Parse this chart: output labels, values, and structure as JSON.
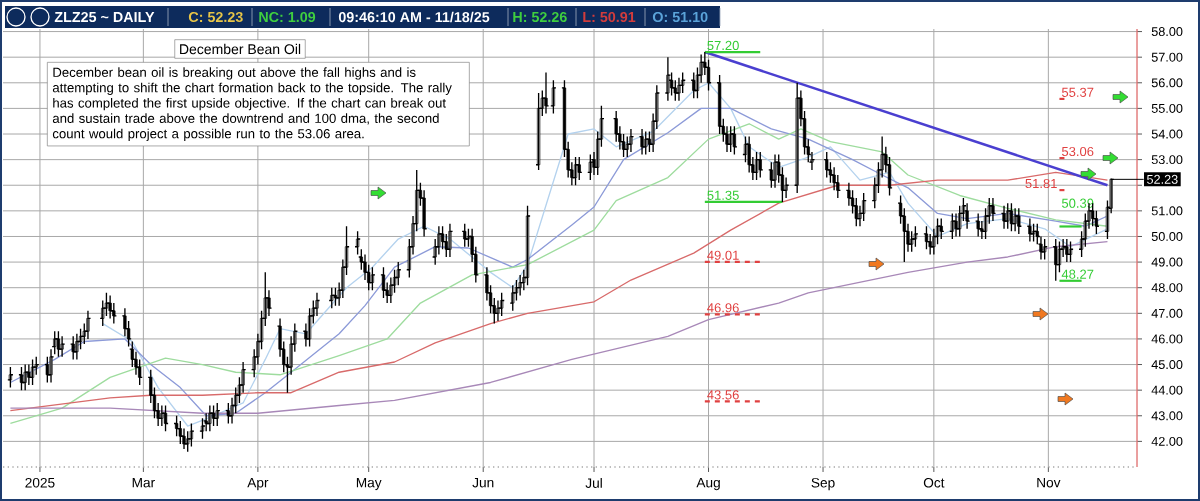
{
  "chart_data": {
    "type": "candlestick",
    "title": "ZLZ25 ~ DAILY",
    "subtitle": "December Bean Oil",
    "x": [
      "2025-01-24",
      "2025-01-27",
      "2025-01-28",
      "2025-01-29",
      "2025-01-30",
      "2025-01-31",
      "2025-02-03",
      "2025-02-04",
      "2025-02-05",
      "2025-02-06",
      "2025-02-07",
      "2025-02-10",
      "2025-02-11",
      "2025-02-12",
      "2025-02-13",
      "2025-02-14",
      "2025-02-18",
      "2025-02-19",
      "2025-02-20",
      "2025-02-21",
      "2025-02-24",
      "2025-02-25",
      "2025-02-26",
      "2025-02-27",
      "2025-02-28",
      "2025-03-03",
      "2025-03-04",
      "2025-03-05",
      "2025-03-06",
      "2025-03-07",
      "2025-03-10",
      "2025-03-11",
      "2025-03-12",
      "2025-03-13",
      "2025-03-14",
      "2025-03-17",
      "2025-03-18",
      "2025-03-19",
      "2025-03-20",
      "2025-03-21",
      "2025-03-24",
      "2025-03-25",
      "2025-03-26",
      "2025-03-27",
      "2025-03-28",
      "2025-03-31",
      "2025-04-01",
      "2025-04-02",
      "2025-04-03",
      "2025-04-04",
      "2025-04-07",
      "2025-04-08",
      "2025-04-09",
      "2025-04-10",
      "2025-04-11",
      "2025-04-14",
      "2025-04-15",
      "2025-04-16",
      "2025-04-17",
      "2025-04-21",
      "2025-04-22",
      "2025-04-23",
      "2025-04-24",
      "2025-04-25",
      "2025-04-28",
      "2025-04-29",
      "2025-04-30",
      "2025-05-01",
      "2025-05-02",
      "2025-05-05",
      "2025-05-06",
      "2025-05-07",
      "2025-05-08",
      "2025-05-09",
      "2025-05-12",
      "2025-05-13",
      "2025-05-14",
      "2025-05-15",
      "2025-05-16",
      "2025-05-19",
      "2025-05-20",
      "2025-05-21",
      "2025-05-22",
      "2025-05-23",
      "2025-05-27",
      "2025-05-28",
      "2025-05-29",
      "2025-05-30",
      "2025-06-02",
      "2025-06-03",
      "2025-06-04",
      "2025-06-05",
      "2025-06-06",
      "2025-06-09",
      "2025-06-10",
      "2025-06-11",
      "2025-06-12",
      "2025-06-13",
      "2025-06-16",
      "2025-06-17",
      "2025-06-18",
      "2025-06-20",
      "2025-06-23",
      "2025-06-24",
      "2025-06-25",
      "2025-06-26",
      "2025-06-27",
      "2025-06-30",
      "2025-07-01",
      "2025-07-02",
      "2025-07-03",
      "2025-07-07",
      "2025-07-08",
      "2025-07-09",
      "2025-07-10",
      "2025-07-11",
      "2025-07-14",
      "2025-07-15",
      "2025-07-16",
      "2025-07-17",
      "2025-07-18",
      "2025-07-21",
      "2025-07-22",
      "2025-07-23",
      "2025-07-24",
      "2025-07-25",
      "2025-07-28",
      "2025-07-29",
      "2025-07-30",
      "2025-07-31",
      "2025-08-01",
      "2025-08-04",
      "2025-08-05",
      "2025-08-06",
      "2025-08-07",
      "2025-08-08",
      "2025-08-11",
      "2025-08-12",
      "2025-08-13",
      "2025-08-14",
      "2025-08-15",
      "2025-08-18",
      "2025-08-19",
      "2025-08-20",
      "2025-08-21",
      "2025-08-22",
      "2025-08-25",
      "2025-08-26",
      "2025-08-27",
      "2025-08-28",
      "2025-08-29",
      "2025-09-02",
      "2025-09-03",
      "2025-09-04",
      "2025-09-05",
      "2025-09-08",
      "2025-09-09",
      "2025-09-10",
      "2025-09-11",
      "2025-09-12",
      "2025-09-15",
      "2025-09-16",
      "2025-09-17",
      "2025-09-18",
      "2025-09-19",
      "2025-09-22",
      "2025-09-23",
      "2025-09-24",
      "2025-09-25",
      "2025-09-26",
      "2025-09-29",
      "2025-09-30",
      "2025-10-01",
      "2025-10-02",
      "2025-10-03",
      "2025-10-06",
      "2025-10-07",
      "2025-10-08",
      "2025-10-09",
      "2025-10-10",
      "2025-10-13",
      "2025-10-14",
      "2025-10-15",
      "2025-10-16",
      "2025-10-17",
      "2025-10-20",
      "2025-10-21",
      "2025-10-22",
      "2025-10-23",
      "2025-10-24",
      "2025-10-27",
      "2025-10-28",
      "2025-10-29",
      "2025-10-30",
      "2025-10-31",
      "2025-11-03",
      "2025-11-04",
      "2025-11-05",
      "2025-11-06",
      "2025-11-07",
      "2025-11-10",
      "2025-11-11",
      "2025-11-12",
      "2025-11-13",
      "2025-11-14",
      "2025-11-17",
      "2025-11-18"
    ],
    "ohlc": [
      [
        44.4,
        44.9,
        44.1,
        44.6
      ],
      [
        44.6,
        44.9,
        44.0,
        44.3
      ],
      [
        44.3,
        45.0,
        44.0,
        44.7
      ],
      [
        44.7,
        45.0,
        44.2,
        44.5
      ],
      [
        44.5,
        45.2,
        44.2,
        44.9
      ],
      [
        44.9,
        45.3,
        44.6,
        45.0
      ],
      [
        45.0,
        45.3,
        44.3,
        44.6
      ],
      [
        44.6,
        45.6,
        44.3,
        45.3
      ],
      [
        45.7,
        46.3,
        45.4,
        46.0
      ],
      [
        46.0,
        46.3,
        45.3,
        45.6
      ],
      [
        45.6,
        46.1,
        45.3,
        45.8
      ],
      [
        45.8,
        46.1,
        45.2,
        45.5
      ],
      [
        45.5,
        46.2,
        45.2,
        45.9
      ],
      [
        45.9,
        46.4,
        45.6,
        46.1
      ],
      [
        46.1,
        46.6,
        45.8,
        46.3
      ],
      [
        46.3,
        47.1,
        46.0,
        46.8
      ],
      [
        46.8,
        47.5,
        46.5,
        47.2
      ],
      [
        47.2,
        47.8,
        46.9,
        47.4
      ],
      [
        47.4,
        47.7,
        46.8,
        47.1
      ],
      [
        47.1,
        47.4,
        46.6,
        46.9
      ],
      [
        46.9,
        47.2,
        46.1,
        46.4
      ],
      [
        46.4,
        46.7,
        45.7,
        46.0
      ],
      [
        45.6,
        45.9,
        44.9,
        45.2
      ],
      [
        45.2,
        45.5,
        44.6,
        44.9
      ],
      [
        44.9,
        45.2,
        44.2,
        44.5
      ],
      [
        44.5,
        44.8,
        43.5,
        43.8
      ],
      [
        43.8,
        44.1,
        42.9,
        43.2
      ],
      [
        43.2,
        43.5,
        42.6,
        42.9
      ],
      [
        42.9,
        43.4,
        42.6,
        43.1
      ],
      [
        43.1,
        43.4,
        42.4,
        42.7
      ],
      [
        42.7,
        43.0,
        42.2,
        42.5
      ],
      [
        42.5,
        42.8,
        41.9,
        42.2
      ],
      [
        42.2,
        42.5,
        41.7,
        41.9
      ],
      [
        41.9,
        42.4,
        41.6,
        42.1
      ],
      [
        42.1,
        42.7,
        41.8,
        42.4
      ],
      [
        42.4,
        42.9,
        42.1,
        42.6
      ],
      [
        42.8,
        43.1,
        42.4,
        42.7
      ],
      [
        42.7,
        43.4,
        42.4,
        43.1
      ],
      [
        43.1,
        43.4,
        42.6,
        42.9
      ],
      [
        42.9,
        43.5,
        42.6,
        43.2
      ],
      [
        43.2,
        43.5,
        42.7,
        43.0
      ],
      [
        43.0,
        43.7,
        42.7,
        43.4
      ],
      [
        43.4,
        44.1,
        43.1,
        43.8
      ],
      [
        43.8,
        44.5,
        43.5,
        44.2
      ],
      [
        44.2,
        45.1,
        43.9,
        44.8
      ],
      [
        44.8,
        45.6,
        44.5,
        45.3
      ],
      [
        45.3,
        46.2,
        45.0,
        45.9
      ],
      [
        45.9,
        47.1,
        45.6,
        46.8
      ],
      [
        46.8,
        48.6,
        46.5,
        47.6
      ],
      [
        47.6,
        47.9,
        46.9,
        47.2
      ],
      [
        46.5,
        46.8,
        45.3,
        45.6
      ],
      [
        45.6,
        45.9,
        44.7,
        45.0
      ],
      [
        45.0,
        45.3,
        43.9,
        44.9
      ],
      [
        44.9,
        46.1,
        44.6,
        45.8
      ],
      [
        45.8,
        46.6,
        45.5,
        46.3
      ],
      [
        46.3,
        46.6,
        45.7,
        46.0
      ],
      [
        46.0,
        47.2,
        45.7,
        46.9
      ],
      [
        46.9,
        47.5,
        46.6,
        47.2
      ],
      [
        47.2,
        47.8,
        46.9,
        47.5
      ],
      [
        47.5,
        48.0,
        47.2,
        47.7
      ],
      [
        47.7,
        48.0,
        47.3,
        47.6
      ],
      [
        47.6,
        48.2,
        47.3,
        47.9
      ],
      [
        47.9,
        49.1,
        47.6,
        48.8
      ],
      [
        48.8,
        50.4,
        48.5,
        49.6
      ],
      [
        49.6,
        50.2,
        49.3,
        49.9
      ],
      [
        49.2,
        49.5,
        48.7,
        49.0
      ],
      [
        49.0,
        49.3,
        48.3,
        48.6
      ],
      [
        48.6,
        48.9,
        47.9,
        48.2
      ],
      [
        48.2,
        48.8,
        47.9,
        48.5
      ],
      [
        48.5,
        48.8,
        47.6,
        47.9
      ],
      [
        47.9,
        48.2,
        47.4,
        47.7
      ],
      [
        47.7,
        48.4,
        47.4,
        48.1
      ],
      [
        48.1,
        48.7,
        47.8,
        48.4
      ],
      [
        48.4,
        49.0,
        48.1,
        48.7
      ],
      [
        48.7,
        49.9,
        48.4,
        49.6
      ],
      [
        49.6,
        50.8,
        49.3,
        50.5
      ],
      [
        50.5,
        52.6,
        50.2,
        51.8
      ],
      [
        51.8,
        52.1,
        51.2,
        51.5
      ],
      [
        51.5,
        51.8,
        50.0,
        50.3
      ],
      [
        49.2,
        49.9,
        48.9,
        49.6
      ],
      [
        49.6,
        50.4,
        49.3,
        50.1
      ],
      [
        50.1,
        50.4,
        49.5,
        49.8
      ],
      [
        49.8,
        50.1,
        49.2,
        49.5
      ],
      [
        49.5,
        50.5,
        49.2,
        50.2
      ],
      [
        50.2,
        50.5,
        49.6,
        49.9
      ],
      [
        49.9,
        50.3,
        49.6,
        50.0
      ],
      [
        50.0,
        50.3,
        49.0,
        49.3
      ],
      [
        49.3,
        49.6,
        48.2,
        48.5
      ],
      [
        48.5,
        48.8,
        47.5,
        47.8
      ],
      [
        47.8,
        48.1,
        47.0,
        47.3
      ],
      [
        47.3,
        47.6,
        46.6,
        47.0
      ],
      [
        47.0,
        47.5,
        46.7,
        47.2
      ],
      [
        47.2,
        47.8,
        46.9,
        47.5
      ],
      [
        47.4,
        48.1,
        47.1,
        47.8
      ],
      [
        47.8,
        48.3,
        47.5,
        48.0
      ],
      [
        48.0,
        48.5,
        47.7,
        48.2
      ],
      [
        48.2,
        48.7,
        47.9,
        48.4
      ],
      [
        48.4,
        51.2,
        48.1,
        50.8
      ],
      [
        52.8,
        55.6,
        52.6,
        55.0
      ],
      [
        55.0,
        55.7,
        54.7,
        55.4
      ],
      [
        55.4,
        56.4,
        54.8,
        55.1
      ],
      [
        55.1,
        56.1,
        54.8,
        55.8
      ],
      [
        55.8,
        56.1,
        53.1,
        53.4
      ],
      [
        53.4,
        53.7,
        52.3,
        52.6
      ],
      [
        52.6,
        52.9,
        52.0,
        52.3
      ],
      [
        52.3,
        53.1,
        52.0,
        52.8
      ],
      [
        52.8,
        53.1,
        52.2,
        52.5
      ],
      [
        52.5,
        53.2,
        52.2,
        52.9
      ],
      [
        53.0,
        53.3,
        52.4,
        52.7
      ],
      [
        52.7,
        54.1,
        52.4,
        53.8
      ],
      [
        53.8,
        55.1,
        53.5,
        54.6
      ],
      [
        54.6,
        54.9,
        53.7,
        54.0
      ],
      [
        54.0,
        54.3,
        53.4,
        53.7
      ],
      [
        53.7,
        54.0,
        53.1,
        53.4
      ],
      [
        53.4,
        53.9,
        53.1,
        53.6
      ],
      [
        53.6,
        54.2,
        53.3,
        53.9
      ],
      [
        53.9,
        54.2,
        53.2,
        53.5
      ],
      [
        53.5,
        54.1,
        53.2,
        53.8
      ],
      [
        53.8,
        54.1,
        53.3,
        53.6
      ],
      [
        53.6,
        54.8,
        53.3,
        54.5
      ],
      [
        54.5,
        55.9,
        54.2,
        55.6
      ],
      [
        55.6,
        57.0,
        55.3,
        56.3
      ],
      [
        56.1,
        56.4,
        55.5,
        55.8
      ],
      [
        55.8,
        56.1,
        55.3,
        55.6
      ],
      [
        55.6,
        56.2,
        55.3,
        55.9
      ],
      [
        55.9,
        56.4,
        55.6,
        56.1
      ],
      [
        56.1,
        56.4,
        55.4,
        55.7
      ],
      [
        55.7,
        56.6,
        55.4,
        56.3
      ],
      [
        56.3,
        57.1,
        56.0,
        56.8
      ],
      [
        56.8,
        57.2,
        56.3,
        56.6
      ],
      [
        56.6,
        56.9,
        55.7,
        56.0
      ],
      [
        56.0,
        56.3,
        54.0,
        54.3
      ],
      [
        54.3,
        54.6,
        53.7,
        54.0
      ],
      [
        54.0,
        54.3,
        53.3,
        53.6
      ],
      [
        53.6,
        54.3,
        53.3,
        54.0
      ],
      [
        54.0,
        54.3,
        53.2,
        53.5
      ],
      [
        53.2,
        53.9,
        52.9,
        53.6
      ],
      [
        53.6,
        53.9,
        52.5,
        52.8
      ],
      [
        52.8,
        53.1,
        52.2,
        52.5
      ],
      [
        52.5,
        53.3,
        52.2,
        53.0
      ],
      [
        53.0,
        53.3,
        52.3,
        52.6
      ],
      [
        52.6,
        52.9,
        51.9,
        52.2
      ],
      [
        52.2,
        53.2,
        51.9,
        52.9
      ],
      [
        52.9,
        53.2,
        52.1,
        52.4
      ],
      [
        52.4,
        52.7,
        51.35,
        51.8
      ],
      [
        51.8,
        52.3,
        51.5,
        52.0
      ],
      [
        52.0,
        56.0,
        51.7,
        55.4
      ],
      [
        55.4,
        55.7,
        54.3,
        54.6
      ],
      [
        54.6,
        54.9,
        53.2,
        53.5
      ],
      [
        53.5,
        53.8,
        52.9,
        53.2
      ],
      [
        52.9,
        53.3,
        52.6,
        53.0
      ],
      [
        53.0,
        53.3,
        52.3,
        52.6
      ],
      [
        52.6,
        52.9,
        52.1,
        52.4
      ],
      [
        52.4,
        52.7,
        51.8,
        52.1
      ],
      [
        52.1,
        52.4,
        51.5,
        51.8
      ],
      [
        51.8,
        52.1,
        51.2,
        51.5
      ],
      [
        51.5,
        51.8,
        50.9,
        51.2
      ],
      [
        51.2,
        51.5,
        50.4,
        50.7
      ],
      [
        50.7,
        51.2,
        50.4,
        50.9
      ],
      [
        50.9,
        51.7,
        50.6,
        51.4
      ],
      [
        51.4,
        52.3,
        51.1,
        52.0
      ],
      [
        52.0,
        52.9,
        51.7,
        52.6
      ],
      [
        52.6,
        53.9,
        52.3,
        53.2
      ],
      [
        53.2,
        53.5,
        52.5,
        52.8
      ],
      [
        52.8,
        53.1,
        51.6,
        51.9
      ],
      [
        51.3,
        51.6,
        50.5,
        50.8
      ],
      [
        50.8,
        51.1,
        49.0,
        50.2
      ],
      [
        50.2,
        50.5,
        49.4,
        49.7
      ],
      [
        49.7,
        50.2,
        49.4,
        49.9
      ],
      [
        49.9,
        50.4,
        49.6,
        50.1
      ],
      [
        50.1,
        50.4,
        49.5,
        49.8
      ],
      [
        49.8,
        50.1,
        49.3,
        49.6
      ],
      [
        49.6,
        50.3,
        49.3,
        50.0
      ],
      [
        50.0,
        50.7,
        49.7,
        50.4
      ],
      [
        50.4,
        50.7,
        49.9,
        50.2
      ],
      [
        50.2,
        50.9,
        49.9,
        50.6
      ],
      [
        50.6,
        50.9,
        50.0,
        50.3
      ],
      [
        50.3,
        51.2,
        50.0,
        50.9
      ],
      [
        50.9,
        51.5,
        50.6,
        51.2
      ],
      [
        51.0,
        51.3,
        50.3,
        50.6
      ],
      [
        50.6,
        50.9,
        50.0,
        50.3
      ],
      [
        50.3,
        50.6,
        49.9,
        50.2
      ],
      [
        50.2,
        51.1,
        49.9,
        50.8
      ],
      [
        50.8,
        51.5,
        50.5,
        51.2
      ],
      [
        51.2,
        51.5,
        50.6,
        50.9
      ],
      [
        50.9,
        51.2,
        50.3,
        50.6
      ],
      [
        50.6,
        51.3,
        50.3,
        51.0
      ],
      [
        51.0,
        51.3,
        50.2,
        50.5
      ],
      [
        50.5,
        51.1,
        50.2,
        50.8
      ],
      [
        50.8,
        51.1,
        50.1,
        50.4
      ],
      [
        50.4,
        50.7,
        49.8,
        50.1
      ],
      [
        50.1,
        50.5,
        49.8,
        50.2
      ],
      [
        50.2,
        50.5,
        49.7,
        50.0
      ],
      [
        49.7,
        50.0,
        49.1,
        49.4
      ],
      [
        49.4,
        49.9,
        49.1,
        49.6
      ],
      [
        49.6,
        49.9,
        48.27,
        48.9
      ],
      [
        48.9,
        49.8,
        48.6,
        49.5
      ],
      [
        49.5,
        49.9,
        49.2,
        49.6
      ],
      [
        49.6,
        49.9,
        49.0,
        49.3
      ],
      [
        49.3,
        49.8,
        49.0,
        49.5
      ],
      [
        49.5,
        50.2,
        49.2,
        49.9
      ],
      [
        49.9,
        50.9,
        49.6,
        50.6
      ],
      [
        50.6,
        51.3,
        50.3,
        51.0
      ],
      [
        51.0,
        51.3,
        50.4,
        50.7
      ],
      [
        50.7,
        51.0,
        50.1,
        50.4
      ],
      [
        50.2,
        51.4,
        49.9,
        51.14
      ],
      [
        51.1,
        52.26,
        50.91,
        52.23
      ]
    ],
    "series": [
      {
        "type": "line",
        "color": "#b4d2ee",
        "x": [
          "2025-02-18",
          "2025-02-26",
          "2025-03-05",
          "2025-03-13",
          "2025-03-20",
          "2025-03-28",
          "2025-04-03",
          "2025-04-07",
          "2025-04-14",
          "2025-04-25",
          "2025-05-02",
          "2025-05-09",
          "2025-05-16",
          "2025-05-23",
          "2025-06-03",
          "2025-06-09",
          "2025-06-13",
          "2025-06-24",
          "2025-07-01",
          "2025-07-07",
          "2025-07-17",
          "2025-07-28",
          "2025-08-01",
          "2025-08-07",
          "2025-08-12",
          "2025-08-20",
          "2025-08-28",
          "2025-09-03",
          "2025-09-11",
          "2025-09-19",
          "2025-09-24",
          "2025-10-02",
          "2025-10-10",
          "2025-10-21",
          "2025-10-31",
          "2025-11-07",
          "2025-11-17"
        ],
        "values": [
          46.6,
          45.9,
          44.1,
          42.6,
          43.0,
          43.5,
          45.2,
          46.4,
          46.2,
          48.0,
          48.8,
          49.9,
          50.4,
          49.9,
          48.6,
          48.0,
          48.9,
          54.0,
          54.2,
          53.5,
          54.1,
          55.7,
          56.0,
          55.0,
          53.5,
          52.7,
          53.1,
          53.5,
          52.2,
          52.5,
          51.3,
          50.0,
          50.5,
          50.7,
          50.3,
          49.6,
          50.3
        ]
      },
      {
        "type": "line",
        "color": "#8c9ad8",
        "x": [
          "2025-01-24",
          "2025-02-05",
          "2025-02-13",
          "2025-02-24",
          "2025-03-03",
          "2025-03-11",
          "2025-03-18",
          "2025-03-26",
          "2025-04-03",
          "2025-04-10",
          "2025-04-23",
          "2025-04-30",
          "2025-05-08",
          "2025-05-19",
          "2025-05-28",
          "2025-06-09",
          "2025-06-13",
          "2025-06-25",
          "2025-07-01",
          "2025-07-09",
          "2025-07-21",
          "2025-07-30",
          "2025-08-07",
          "2025-08-18",
          "2025-08-28",
          "2025-09-09",
          "2025-09-17",
          "2025-09-24",
          "2025-10-02",
          "2025-10-10",
          "2025-10-21",
          "2025-11-03",
          "2025-11-11",
          "2025-11-17"
        ],
        "values": [
          44.3,
          45.2,
          45.9,
          46.0,
          45.0,
          44.1,
          43.0,
          43.1,
          43.9,
          44.7,
          46.2,
          47.3,
          48.8,
          49.6,
          49.55,
          48.8,
          49.1,
          50.45,
          51.15,
          53.0,
          54.05,
          55.0,
          55.0,
          54.2,
          53.8,
          53.0,
          52.4,
          51.9,
          50.9,
          50.7,
          50.9,
          50.6,
          50.4,
          50.8
        ]
      },
      {
        "type": "line",
        "color": "#9edc9e",
        "x": [
          "2025-01-24",
          "2025-02-07",
          "2025-02-20",
          "2025-03-07",
          "2025-03-17",
          "2025-03-26",
          "2025-04-07",
          "2025-04-23",
          "2025-05-06",
          "2025-05-15",
          "2025-05-29",
          "2025-06-13",
          "2025-07-01",
          "2025-07-07",
          "2025-07-21",
          "2025-08-01",
          "2025-08-12",
          "2025-08-20",
          "2025-08-26",
          "2025-09-03",
          "2025-09-17",
          "2025-09-24",
          "2025-10-08",
          "2025-10-21",
          "2025-11-03",
          "2025-11-17"
        ],
        "values": [
          42.7,
          43.3,
          44.5,
          45.25,
          45.0,
          44.7,
          44.6,
          45.35,
          46.0,
          47.4,
          48.5,
          48.9,
          50.25,
          51.4,
          52.3,
          53.8,
          54.4,
          53.8,
          54.2,
          53.7,
          53.3,
          52.4,
          51.6,
          51.1,
          50.65,
          50.4
        ]
      },
      {
        "type": "line",
        "color": "#d86a6a",
        "x": [
          "2025-01-24",
          "2025-02-20",
          "2025-03-03",
          "2025-03-17",
          "2025-04-01",
          "2025-04-10",
          "2025-04-23",
          "2025-05-08",
          "2025-05-19",
          "2025-06-03",
          "2025-06-13",
          "2025-07-01",
          "2025-07-11",
          "2025-07-28",
          "2025-08-07",
          "2025-08-20",
          "2025-09-05",
          "2025-09-19",
          "2025-10-02",
          "2025-10-21",
          "2025-11-03",
          "2025-11-17"
        ],
        "values": [
          43.2,
          43.7,
          43.8,
          43.8,
          43.9,
          43.9,
          44.7,
          45.1,
          45.85,
          46.6,
          47.0,
          47.45,
          48.3,
          49.35,
          50.25,
          51.3,
          52.0,
          52.0,
          52.2,
          52.2,
          52.5,
          52.2
        ]
      },
      {
        "type": "line",
        "color": "#a888b8",
        "x": [
          "2025-01-24",
          "2025-02-20",
          "2025-03-17",
          "2025-04-01",
          "2025-04-23",
          "2025-05-08",
          "2025-06-03",
          "2025-06-25",
          "2025-07-21",
          "2025-08-01",
          "2025-08-20",
          "2025-08-28",
          "2025-09-24",
          "2025-10-10",
          "2025-10-21",
          "2025-11-03",
          "2025-11-17"
        ],
        "values": [
          43.3,
          43.3,
          43.1,
          43.1,
          43.4,
          43.6,
          44.3,
          45.2,
          46.1,
          46.75,
          47.4,
          47.8,
          48.6,
          49.0,
          49.2,
          49.6,
          49.8
        ]
      },
      {
        "type": "line",
        "color": "#4a3fd0",
        "x": [
          "2025-07-31",
          "2025-11-17"
        ],
        "values": [
          57.2,
          52.0
        ]
      },
      {
        "type": "line",
        "name": "57.20",
        "color": "#33cc33",
        "line_style": "solid",
        "x": [
          "2025-07-31",
          "2025-08-15"
        ],
        "values": [
          57.2,
          57.2
        ]
      },
      {
        "type": "line",
        "name": "51.35",
        "color": "#33cc33",
        "line_style": "solid",
        "x": [
          "2025-07-31",
          "2025-08-21"
        ],
        "values": [
          51.35,
          51.35
        ]
      },
      {
        "type": "line",
        "name": "49.01",
        "color": "#e04040",
        "line_style": "dashed",
        "x": [
          "2025-07-31",
          "2025-08-15"
        ],
        "values": [
          49.01,
          49.01
        ]
      },
      {
        "type": "line",
        "name": "46.96",
        "color": "#e04040",
        "line_style": "dashed",
        "x": [
          "2025-07-31",
          "2025-08-15"
        ],
        "values": [
          46.96,
          46.96
        ]
      },
      {
        "type": "line",
        "name": "43.56",
        "color": "#e04040",
        "line_style": "dashed",
        "x": [
          "2025-07-31",
          "2025-08-15"
        ],
        "values": [
          43.56,
          43.56
        ]
      },
      {
        "type": "line",
        "name": "55.37",
        "color": "#e04040",
        "line_style": "dashed",
        "x": [
          "2025-11-04",
          "2025-11-06"
        ],
        "values": [
          55.37,
          55.37
        ]
      },
      {
        "type": "line",
        "name": "53.06",
        "color": "#e04040",
        "line_style": "dashed",
        "x": [
          "2025-11-04",
          "2025-11-06"
        ],
        "values": [
          53.06,
          53.06
        ]
      },
      {
        "type": "line",
        "name": "51.81",
        "color": "#e04040",
        "line_style": "dashed",
        "x": [
          "2025-11-04",
          "2025-11-06"
        ],
        "values": [
          51.81,
          51.81
        ]
      },
      {
        "type": "line",
        "name": "50.39",
        "color": "#33cc33",
        "line_style": "solid",
        "x": [
          "2025-11-04",
          "2025-11-10"
        ],
        "values": [
          50.39,
          50.39
        ]
      },
      {
        "type": "line",
        "name": "48.27",
        "color": "#33cc33",
        "line_style": "solid",
        "x": [
          "2025-11-04",
          "2025-11-10"
        ],
        "values": [
          48.27,
          48.27
        ]
      }
    ],
    "annotations": [
      "C: 52.23",
      "NC: 1.09",
      "09:46:10 AM - 11/18/25",
      "H: 52.26",
      "L: 50.91",
      "O: 51.10",
      "December bean oil is breaking out above the fall highs and is attempting to shift the chart formation back to the topside.  The rally has completed the first upside objective.  If the chart can break out and sustain trade above the downtrend and 100 dma, the second count would project a possible run to the 53.06 area.",
      {
        "text": "52.23",
        "x": "2025-11-18",
        "y": 52.23
      }
    ],
    "xlim": [
      "2025-01-22",
      "2025-11-25"
    ],
    "ylim": [
      41.0,
      58.1
    ],
    "xticks": [
      {
        "value": "2025-02-01",
        "label": "2025"
      },
      {
        "value": "2025-03-01",
        "label": "Mar"
      },
      {
        "value": "2025-04-01",
        "label": "Apr"
      },
      {
        "value": "2025-05-01",
        "label": "May"
      },
      {
        "value": "2025-06-01",
        "label": "Jun"
      },
      {
        "value": "2025-07-01",
        "label": "Jul"
      },
      {
        "value": "2025-08-01",
        "label": "Aug"
      },
      {
        "value": "2025-09-01",
        "label": "Sep"
      },
      {
        "value": "2025-10-01",
        "label": "Oct"
      },
      {
        "value": "2025-11-01",
        "label": "Nov"
      }
    ],
    "yticks": [
      {
        "value": 42,
        "label": "42.00"
      },
      {
        "value": 43,
        "label": "43.00"
      },
      {
        "value": 44,
        "label": "44.00"
      },
      {
        "value": 45,
        "label": "45.00"
      },
      {
        "value": 46,
        "label": "46.00"
      },
      {
        "value": 47,
        "label": "47.00"
      },
      {
        "value": 48,
        "label": "48.00"
      },
      {
        "value": 49,
        "label": "49.00"
      },
      {
        "value": 50,
        "label": "50.00"
      },
      {
        "value": 51,
        "label": "51.00"
      },
      {
        "value": 52,
        "label": null
      },
      {
        "value": 53,
        "label": "53.00"
      },
      {
        "value": 54,
        "label": "54.00"
      },
      {
        "value": 55,
        "label": "55.00"
      },
      {
        "value": 56,
        "label": "56.00"
      },
      {
        "value": 57,
        "label": "57.00"
      },
      {
        "value": 58,
        "label": "58.00"
      }
    ],
    "grid": true
  }
}
